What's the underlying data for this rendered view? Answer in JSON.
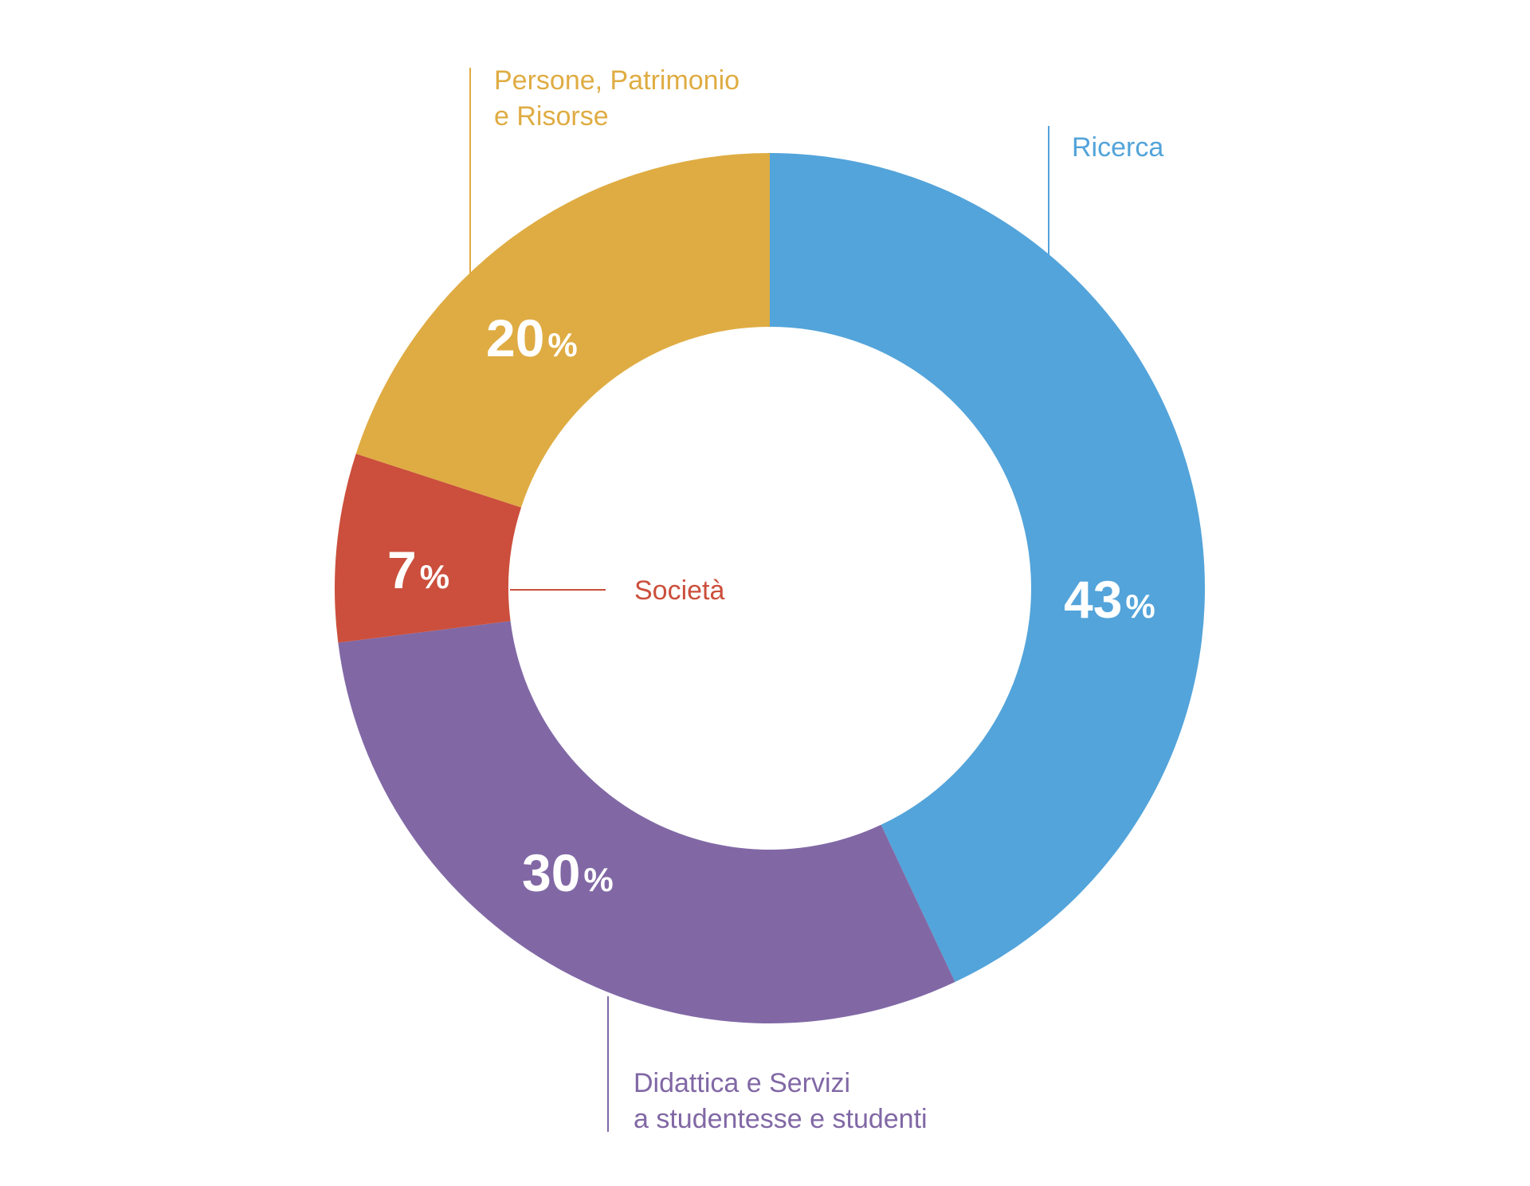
{
  "chart_data": {
    "type": "pie",
    "variant": "donut",
    "title": "",
    "slices": [
      {
        "label": "Ricerca",
        "value": 43,
        "value_label": "43",
        "unit": "%",
        "color": "#53a4da",
        "label_lines": [
          "Ricerca"
        ]
      },
      {
        "label": "Didattica e Servizi a studentesse e studenti",
        "value": 30,
        "value_label": "30",
        "unit": "%",
        "color": "#8168a5",
        "label_lines": [
          "Didattica e Servizi",
          "a studentesse e studenti"
        ]
      },
      {
        "label": "Società",
        "value": 7,
        "value_label": "7",
        "unit": "%",
        "color": "#cb4f3c",
        "label_lines": [
          "Società"
        ]
      },
      {
        "label": "Persone, Patrimonio e Risorse",
        "value": 20,
        "value_label": "20",
        "unit": "%",
        "color": "#dfac43",
        "label_lines": [
          "Persone, Patrimonio",
          "e Risorse"
        ]
      }
    ],
    "start": "12 o'clock",
    "direction": "clockwise",
    "legend": "callout labels with leader lines"
  }
}
